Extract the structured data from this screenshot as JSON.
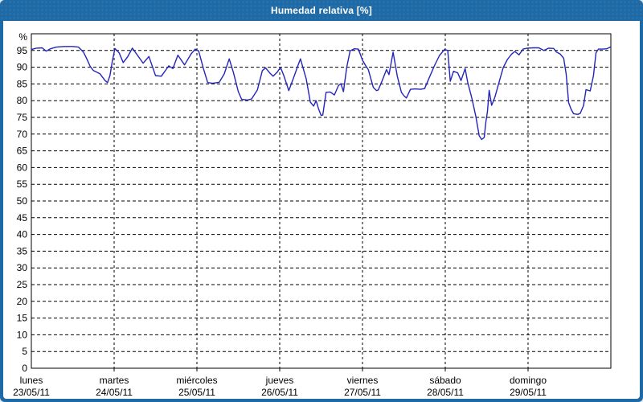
{
  "window": {
    "title": "Humedad relativa [%]",
    "titlebar_color": "#1e6aa6",
    "content_bg": "#ffffff"
  },
  "chart_data": {
    "type": "line",
    "title": "Humedad relativa [%]",
    "y_unit_label": "%",
    "ylabel": "Humedad relativa (%)",
    "ylim": [
      0,
      100
    ],
    "y_tick_labels": [
      "0",
      "5",
      "10",
      "15",
      "20",
      "25",
      "30",
      "35",
      "40",
      "45",
      "50",
      "55",
      "60",
      "65",
      "70",
      "75",
      "80",
      "85",
      "90",
      "95"
    ],
    "grid": "dashed-black",
    "legend": "none",
    "frame_color": "#000000",
    "x_categories": [
      {
        "day": "lunes",
        "date": "23/05/11"
      },
      {
        "day": "martes",
        "date": "24/05/11"
      },
      {
        "day": "miércoles",
        "date": "25/05/11"
      },
      {
        "day": "jueves",
        "date": "26/05/11"
      },
      {
        "day": "viernes",
        "date": "27/05/11"
      },
      {
        "day": "sábado",
        "date": "28/05/11"
      },
      {
        "day": "domingo",
        "date": "29/05/11"
      }
    ],
    "series": [
      {
        "name": "Humedad relativa",
        "color": "#2424bb",
        "x_unit": "days_since_monday_00h",
        "points": [
          [
            0.0,
            95.3
          ],
          [
            0.06,
            95.7
          ],
          [
            0.13,
            95.8
          ],
          [
            0.18,
            94.8
          ],
          [
            0.23,
            95.5
          ],
          [
            0.3,
            96.0
          ],
          [
            0.4,
            96.2
          ],
          [
            0.5,
            96.2
          ],
          [
            0.57,
            96.0
          ],
          [
            0.63,
            94.5
          ],
          [
            0.67,
            92.5
          ],
          [
            0.71,
            90.3
          ],
          [
            0.75,
            89.0
          ],
          [
            0.79,
            88.5
          ],
          [
            0.83,
            88.0
          ],
          [
            0.86,
            87.0
          ],
          [
            0.89,
            86.0
          ],
          [
            0.92,
            85.4
          ],
          [
            0.95,
            87.5
          ],
          [
            0.98,
            92.0
          ],
          [
            1.01,
            95.6
          ],
          [
            1.06,
            94.3
          ],
          [
            1.11,
            91.4
          ],
          [
            1.16,
            93.0
          ],
          [
            1.22,
            95.7
          ],
          [
            1.27,
            94.0
          ],
          [
            1.35,
            91.2
          ],
          [
            1.42,
            93.2
          ],
          [
            1.5,
            87.5
          ],
          [
            1.57,
            87.3
          ],
          [
            1.66,
            90.4
          ],
          [
            1.71,
            89.6
          ],
          [
            1.77,
            93.6
          ],
          [
            1.85,
            90.7
          ],
          [
            1.93,
            94.0
          ],
          [
            1.98,
            95.4
          ],
          [
            2.02,
            94.9
          ],
          [
            2.08,
            89.5
          ],
          [
            2.13,
            85.4
          ],
          [
            2.19,
            85.2
          ],
          [
            2.27,
            85.5
          ],
          [
            2.33,
            88.0
          ],
          [
            2.39,
            92.5
          ],
          [
            2.44,
            88.5
          ],
          [
            2.5,
            82.7
          ],
          [
            2.54,
            80.4
          ],
          [
            2.61,
            80.2
          ],
          [
            2.66,
            80.5
          ],
          [
            2.73,
            83.2
          ],
          [
            2.79,
            89.0
          ],
          [
            2.83,
            89.8
          ],
          [
            2.88,
            88.3
          ],
          [
            2.92,
            87.3
          ],
          [
            2.97,
            88.5
          ],
          [
            3.01,
            90.0
          ],
          [
            3.05,
            87.5
          ],
          [
            3.11,
            83.0
          ],
          [
            3.17,
            87.0
          ],
          [
            3.22,
            90.5
          ],
          [
            3.25,
            92.5
          ],
          [
            3.32,
            86.5
          ],
          [
            3.37,
            79.6
          ],
          [
            3.41,
            78.4
          ],
          [
            3.44,
            80.0
          ],
          [
            3.47,
            77.5
          ],
          [
            3.5,
            75.6
          ],
          [
            3.52,
            75.7
          ],
          [
            3.56,
            82.5
          ],
          [
            3.61,
            82.6
          ],
          [
            3.66,
            81.7
          ],
          [
            3.71,
            84.5
          ],
          [
            3.74,
            85.1
          ],
          [
            3.77,
            82.7
          ],
          [
            3.81,
            90.0
          ],
          [
            3.85,
            94.9
          ],
          [
            3.9,
            95.5
          ],
          [
            3.95,
            95.4
          ],
          [
            4.0,
            92.1
          ],
          [
            4.04,
            90.4
          ],
          [
            4.07,
            89.3
          ],
          [
            4.13,
            84.0
          ],
          [
            4.17,
            83.0
          ],
          [
            4.19,
            83.2
          ],
          [
            4.23,
            85.5
          ],
          [
            4.29,
            89.3
          ],
          [
            4.32,
            87.8
          ],
          [
            4.37,
            94.5
          ],
          [
            4.42,
            87.3
          ],
          [
            4.47,
            82.5
          ],
          [
            4.5,
            81.5
          ],
          [
            4.53,
            80.8
          ],
          [
            4.58,
            83.4
          ],
          [
            4.64,
            83.5
          ],
          [
            4.7,
            83.4
          ],
          [
            4.75,
            83.6
          ],
          [
            4.8,
            86.5
          ],
          [
            4.87,
            90.5
          ],
          [
            4.93,
            93.5
          ],
          [
            4.99,
            95.3
          ],
          [
            5.03,
            95.0
          ],
          [
            5.06,
            85.8
          ],
          [
            5.1,
            88.8
          ],
          [
            5.15,
            88.3
          ],
          [
            5.19,
            86.0
          ],
          [
            5.24,
            89.6
          ],
          [
            5.27,
            85.6
          ],
          [
            5.32,
            80.8
          ],
          [
            5.37,
            75.2
          ],
          [
            5.41,
            69.5
          ],
          [
            5.44,
            68.4
          ],
          [
            5.47,
            69.0
          ],
          [
            5.49,
            73.6
          ],
          [
            5.51,
            76.8
          ],
          [
            5.53,
            83.1
          ],
          [
            5.56,
            78.6
          ],
          [
            5.6,
            81.1
          ],
          [
            5.65,
            85.6
          ],
          [
            5.7,
            89.9
          ],
          [
            5.75,
            92.3
          ],
          [
            5.8,
            93.9
          ],
          [
            5.84,
            94.7
          ],
          [
            5.89,
            93.7
          ],
          [
            5.94,
            95.4
          ],
          [
            5.99,
            95.7
          ],
          [
            6.06,
            95.8
          ],
          [
            6.13,
            95.8
          ],
          [
            6.19,
            95.0
          ],
          [
            6.25,
            95.7
          ],
          [
            6.31,
            95.6
          ],
          [
            6.34,
            94.6
          ],
          [
            6.39,
            93.9
          ],
          [
            6.43,
            92.7
          ],
          [
            6.46,
            88.0
          ],
          [
            6.49,
            79.4
          ],
          [
            6.52,
            77.4
          ],
          [
            6.55,
            76.1
          ],
          [
            6.6,
            75.9
          ],
          [
            6.63,
            76.2
          ],
          [
            6.67,
            78.5
          ],
          [
            6.7,
            83.3
          ],
          [
            6.75,
            82.9
          ],
          [
            6.79,
            87.5
          ],
          [
            6.82,
            94.3
          ],
          [
            6.85,
            95.4
          ],
          [
            6.9,
            95.4
          ],
          [
            6.95,
            95.5
          ],
          [
            6.99,
            96.0
          ]
        ]
      }
    ]
  }
}
